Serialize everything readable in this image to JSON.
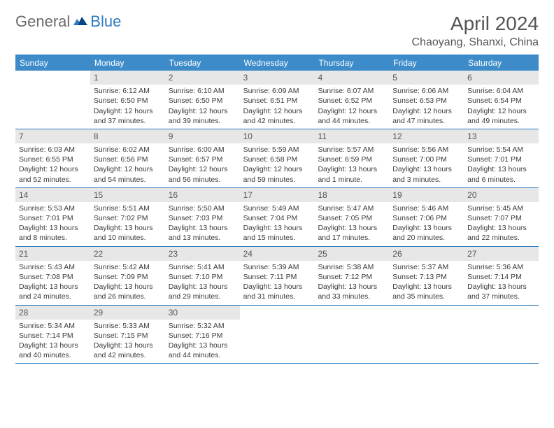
{
  "logo": {
    "text1": "General",
    "text2": "Blue"
  },
  "title": "April 2024",
  "location": "Chaoyang, Shanxi, China",
  "colors": {
    "header_bg": "#3d8cc9",
    "border": "#2f7bbf",
    "daynum_bg": "#e7e7e7",
    "text": "#3a3a3a",
    "title_text": "#555555"
  },
  "dow": [
    "Sunday",
    "Monday",
    "Tuesday",
    "Wednesday",
    "Thursday",
    "Friday",
    "Saturday"
  ],
  "weeks": [
    [
      null,
      {
        "n": "1",
        "sr": "6:12 AM",
        "ss": "6:50 PM",
        "dl": "12 hours and 37 minutes."
      },
      {
        "n": "2",
        "sr": "6:10 AM",
        "ss": "6:50 PM",
        "dl": "12 hours and 39 minutes."
      },
      {
        "n": "3",
        "sr": "6:09 AM",
        "ss": "6:51 PM",
        "dl": "12 hours and 42 minutes."
      },
      {
        "n": "4",
        "sr": "6:07 AM",
        "ss": "6:52 PM",
        "dl": "12 hours and 44 minutes."
      },
      {
        "n": "5",
        "sr": "6:06 AM",
        "ss": "6:53 PM",
        "dl": "12 hours and 47 minutes."
      },
      {
        "n": "6",
        "sr": "6:04 AM",
        "ss": "6:54 PM",
        "dl": "12 hours and 49 minutes."
      }
    ],
    [
      {
        "n": "7",
        "sr": "6:03 AM",
        "ss": "6:55 PM",
        "dl": "12 hours and 52 minutes."
      },
      {
        "n": "8",
        "sr": "6:02 AM",
        "ss": "6:56 PM",
        "dl": "12 hours and 54 minutes."
      },
      {
        "n": "9",
        "sr": "6:00 AM",
        "ss": "6:57 PM",
        "dl": "12 hours and 56 minutes."
      },
      {
        "n": "10",
        "sr": "5:59 AM",
        "ss": "6:58 PM",
        "dl": "12 hours and 59 minutes."
      },
      {
        "n": "11",
        "sr": "5:57 AM",
        "ss": "6:59 PM",
        "dl": "13 hours and 1 minute."
      },
      {
        "n": "12",
        "sr": "5:56 AM",
        "ss": "7:00 PM",
        "dl": "13 hours and 3 minutes."
      },
      {
        "n": "13",
        "sr": "5:54 AM",
        "ss": "7:01 PM",
        "dl": "13 hours and 6 minutes."
      }
    ],
    [
      {
        "n": "14",
        "sr": "5:53 AM",
        "ss": "7:01 PM",
        "dl": "13 hours and 8 minutes."
      },
      {
        "n": "15",
        "sr": "5:51 AM",
        "ss": "7:02 PM",
        "dl": "13 hours and 10 minutes."
      },
      {
        "n": "16",
        "sr": "5:50 AM",
        "ss": "7:03 PM",
        "dl": "13 hours and 13 minutes."
      },
      {
        "n": "17",
        "sr": "5:49 AM",
        "ss": "7:04 PM",
        "dl": "13 hours and 15 minutes."
      },
      {
        "n": "18",
        "sr": "5:47 AM",
        "ss": "7:05 PM",
        "dl": "13 hours and 17 minutes."
      },
      {
        "n": "19",
        "sr": "5:46 AM",
        "ss": "7:06 PM",
        "dl": "13 hours and 20 minutes."
      },
      {
        "n": "20",
        "sr": "5:45 AM",
        "ss": "7:07 PM",
        "dl": "13 hours and 22 minutes."
      }
    ],
    [
      {
        "n": "21",
        "sr": "5:43 AM",
        "ss": "7:08 PM",
        "dl": "13 hours and 24 minutes."
      },
      {
        "n": "22",
        "sr": "5:42 AM",
        "ss": "7:09 PM",
        "dl": "13 hours and 26 minutes."
      },
      {
        "n": "23",
        "sr": "5:41 AM",
        "ss": "7:10 PM",
        "dl": "13 hours and 29 minutes."
      },
      {
        "n": "24",
        "sr": "5:39 AM",
        "ss": "7:11 PM",
        "dl": "13 hours and 31 minutes."
      },
      {
        "n": "25",
        "sr": "5:38 AM",
        "ss": "7:12 PM",
        "dl": "13 hours and 33 minutes."
      },
      {
        "n": "26",
        "sr": "5:37 AM",
        "ss": "7:13 PM",
        "dl": "13 hours and 35 minutes."
      },
      {
        "n": "27",
        "sr": "5:36 AM",
        "ss": "7:14 PM",
        "dl": "13 hours and 37 minutes."
      }
    ],
    [
      {
        "n": "28",
        "sr": "5:34 AM",
        "ss": "7:14 PM",
        "dl": "13 hours and 40 minutes."
      },
      {
        "n": "29",
        "sr": "5:33 AM",
        "ss": "7:15 PM",
        "dl": "13 hours and 42 minutes."
      },
      {
        "n": "30",
        "sr": "5:32 AM",
        "ss": "7:16 PM",
        "dl": "13 hours and 44 minutes."
      },
      null,
      null,
      null,
      null
    ]
  ],
  "labels": {
    "sunrise": "Sunrise:",
    "sunset": "Sunset:",
    "daylight": "Daylight:"
  }
}
